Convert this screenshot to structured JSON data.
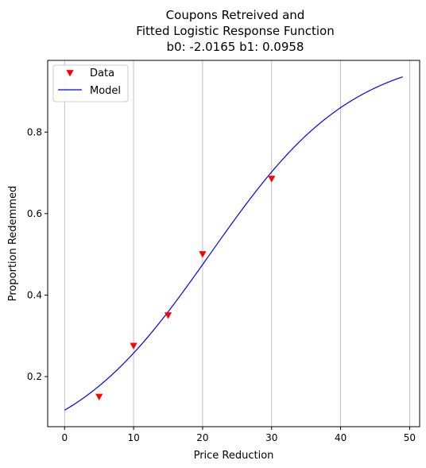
{
  "chart_data": {
    "type": "line",
    "title_lines": [
      "Coupons Retreived and",
      "Fitted Logistic Response Function",
      "b0: -2.0165 b1: 0.0958"
    ],
    "xlabel": "Price Reduction",
    "ylabel": "Proportion Redemmed",
    "xlim": [
      -2.45,
      51.45
    ],
    "ylim": [
      0.077,
      0.976
    ],
    "x_ticks": [
      0,
      10,
      20,
      30,
      40,
      50
    ],
    "y_ticks": [
      0.2,
      0.4,
      0.6,
      0.8
    ],
    "y_tick_labels": [
      "0.2",
      "0.4",
      "0.6",
      "0.8"
    ],
    "grid": "x",
    "legend_position": "top-left",
    "series": [
      {
        "name": "Data",
        "kind": "markers",
        "marker": "triangle-down",
        "color": "#ff0000",
        "x": [
          5,
          10,
          15,
          20,
          30
        ],
        "y": [
          0.15,
          0.275,
          0.35,
          0.5,
          0.685
        ]
      },
      {
        "name": "Model",
        "kind": "line",
        "color": "#0000ff",
        "function": "logistic",
        "b0": -2.0165,
        "b1": 0.0958,
        "x_range": [
          0,
          49
        ]
      }
    ]
  }
}
